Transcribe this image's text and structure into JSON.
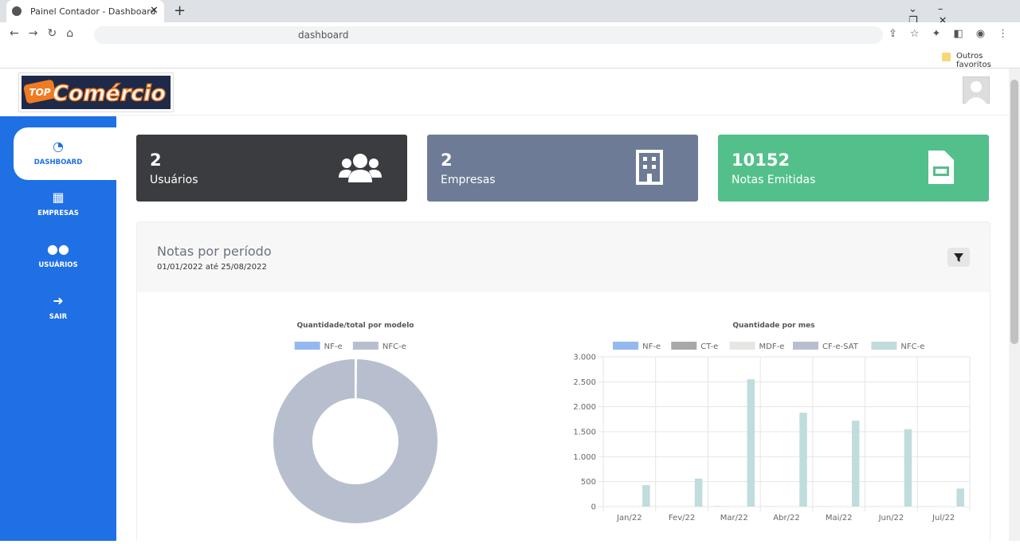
{
  "browser": {
    "tab_title": "Painel Contador - Dashboard",
    "url": "dashboard",
    "bookmark": "Outros favoritos"
  },
  "logo": {
    "badge": "TOP",
    "text": "Comércio"
  },
  "sidebar": {
    "items": [
      "DASHBOARD",
      "EMPRESAS",
      "USUÁRIOS",
      "SAIR"
    ]
  },
  "cards": [
    {
      "value": 2,
      "label": "Usuários"
    },
    {
      "value": 2,
      "label": "Empresas"
    },
    {
      "value": 10152,
      "label": "Notas Emitidas"
    }
  ],
  "panel": {
    "title": "Notas por período",
    "subtitle": "01/01/2022 até 25/08/2022"
  },
  "chart_data": [
    {
      "type": "pie",
      "donut": true,
      "title": "Quantidade/total por modelo",
      "categories": [
        "NF-e",
        "NFC-e"
      ],
      "values": [
        15,
        9050
      ],
      "colors": [
        "#93b9ef",
        "#b7bfcf"
      ]
    },
    {
      "type": "bar",
      "title": "Quantidade por mes",
      "categories": [
        "Jan/22",
        "Fev/22",
        "Mar/22",
        "Abr/22",
        "Mai/22",
        "Jun/22",
        "Jul/22"
      ],
      "series": [
        {
          "name": "NF-e",
          "color": "#93b9ef",
          "values": [
            0,
            0,
            5,
            3,
            2,
            3,
            2
          ]
        },
        {
          "name": "CT-e",
          "color": "#a8a8a8",
          "values": [
            0,
            0,
            0,
            0,
            0,
            0,
            0
          ]
        },
        {
          "name": "MDF-e",
          "color": "#e8e6e3",
          "values": [
            0,
            0,
            0,
            0,
            0,
            0,
            0
          ]
        },
        {
          "name": "CF-e-SAT",
          "color": "#b7bfcf",
          "values": [
            0,
            0,
            0,
            0,
            0,
            0,
            0
          ]
        },
        {
          "name": "NFC-e",
          "color": "#c0dcdc",
          "values": [
            430,
            560,
            2550,
            1880,
            1720,
            1550,
            360
          ]
        }
      ],
      "ylim": [
        0,
        3000
      ],
      "yticks": [
        0,
        500,
        {
          "value": 1000,
          "label": "1.000"
        },
        {
          "value": 1500,
          "label": "1.500"
        },
        {
          "value": 2000,
          "label": "2.000"
        },
        {
          "value": 2500,
          "label": "2.500"
        },
        {
          "value": 3000,
          "label": "3.000"
        }
      ],
      "grid": true
    }
  ]
}
